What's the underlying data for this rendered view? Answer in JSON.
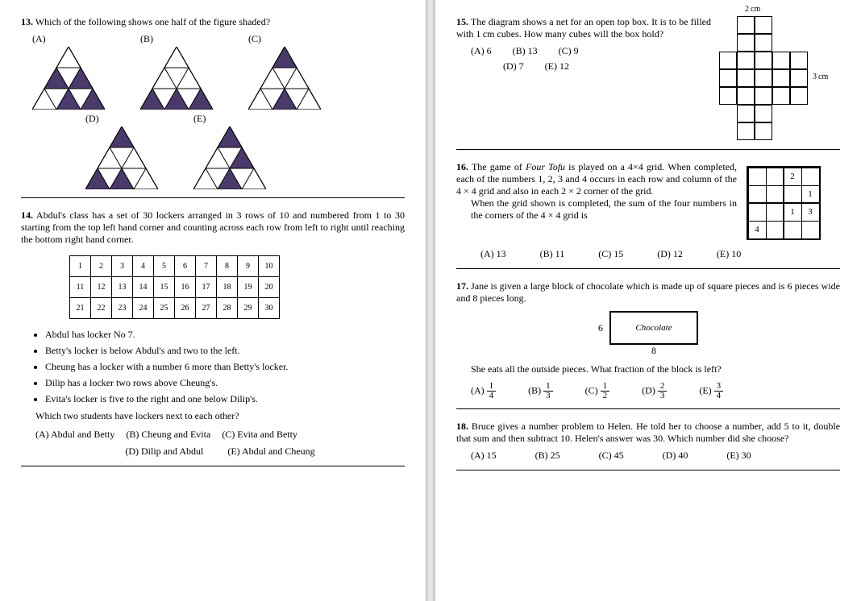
{
  "q13": {
    "num": "13.",
    "text": "Which of the following shows one half of the figure shaded?",
    "labels": [
      "(A)",
      "(B)",
      "(C)",
      "(D)",
      "(E)"
    ],
    "shading": {
      "A": [
        0,
        1,
        1,
        0,
        1,
        1,
        0,
        1,
        1
      ],
      "B": [
        0,
        0,
        0,
        1,
        1,
        1,
        0,
        0,
        1
      ],
      "C": [
        1,
        0,
        0,
        0,
        1,
        0,
        1,
        1,
        1
      ],
      "D": [
        1,
        0,
        0,
        1,
        1,
        0,
        0,
        1,
        1
      ],
      "E": [
        1,
        0,
        1,
        0,
        1,
        0,
        1,
        0,
        1
      ]
    },
    "fill_color": "#4a3a6a",
    "stroke_color": "#000000"
  },
  "q14": {
    "num": "14.",
    "text": "Abdul's class has a set of 30 lockers arranged in 3 rows of 10 and numbered from 1 to 30 starting from the top left hand corner and counting across each row from left to right until reaching the bottom right hand corner.",
    "rows": [
      [
        "1",
        "2",
        "3",
        "4",
        "5",
        "6",
        "7",
        "8",
        "9",
        "10"
      ],
      [
        "11",
        "12",
        "13",
        "14",
        "15",
        "16",
        "17",
        "18",
        "19",
        "20"
      ],
      [
        "21",
        "22",
        "23",
        "24",
        "25",
        "26",
        "27",
        "28",
        "29",
        "30"
      ]
    ],
    "bullets": [
      "Abdul has locker No 7.",
      "Betty's locker is below Abdul's and two to the left.",
      "Cheung has a locker with a number 6 more than Betty's locker.",
      "Dilip has a locker two rows above Cheung's.",
      "Evita's locker is five to the right and one below Dilip's."
    ],
    "followup": "Which two students have lockers next to each other?",
    "choices": [
      "(A) Abdul and Betty",
      "(B) Cheung and Evita",
      "(C) Evita and Betty",
      "(D) Dilip and Abdul",
      "(E) Abdul and Cheung"
    ]
  },
  "q15": {
    "num": "15.",
    "text": "The diagram shows a net for an open top box. It is to be filled with 1 cm cubes. How many cubes will the box hold?",
    "choices": [
      "(A) 6",
      "(B) 13",
      "(C) 9",
      "(D) 7",
      "(E) 12"
    ],
    "label_w": "2 cm",
    "label_h": "3 cm",
    "cells_on": [
      "0,1",
      "0,2",
      "1,1",
      "1,2",
      "2,0",
      "2,1",
      "2,2",
      "2,3",
      "2,4",
      "3,0",
      "3,1",
      "3,2",
      "3,3",
      "3,4",
      "4,0",
      "4,1",
      "4,2",
      "4,3",
      "4,4",
      "5,1",
      "5,2",
      "6,1",
      "6,2"
    ]
  },
  "q16": {
    "num": "16.",
    "text_parts": [
      "The game of ",
      "Four Tofu",
      " is played on a 4×4 grid. When completed, each of the numbers 1, 2, 3 and 4 occurs in each row and column of the 4 × 4 grid and also in each 2 × 2 corner of the grid."
    ],
    "text2": "When the grid shown is completed, the sum of the four numbers in the corners of the 4 × 4 grid is",
    "prefill": {
      "0,2": "2",
      "1,3": "1",
      "2,2": "1",
      "2,3": "3",
      "3,0": "4"
    },
    "choices": [
      "(A) 13",
      "(B) 11",
      "(C) 15",
      "(D) 12",
      "(E) 10"
    ]
  },
  "q17": {
    "num": "17.",
    "text": "Jane is given a large block of chocolate which is made up of square pieces and is 6 pieces wide and 8 pieces long.",
    "followup": "She eats all the outside pieces. What fraction of the block is left?",
    "box_label": "Chocolate",
    "side_label": "6",
    "bottom_label": "8",
    "choices": [
      {
        "l": "(A)",
        "n": "1",
        "d": "4"
      },
      {
        "l": "(B)",
        "n": "1",
        "d": "3"
      },
      {
        "l": "(C)",
        "n": "1",
        "d": "2"
      },
      {
        "l": "(D)",
        "n": "2",
        "d": "3"
      },
      {
        "l": "(E)",
        "n": "3",
        "d": "4"
      }
    ]
  },
  "q18": {
    "num": "18.",
    "text": "Bruce gives a number problem to Helen. He told her to choose a number, add 5 to it, double that sum and then subtract 10. Helen's answer was 30. Which number did she choose?",
    "choices": [
      "(A) 15",
      "(B) 25",
      "(C) 45",
      "(D) 40",
      "(E) 30"
    ]
  }
}
